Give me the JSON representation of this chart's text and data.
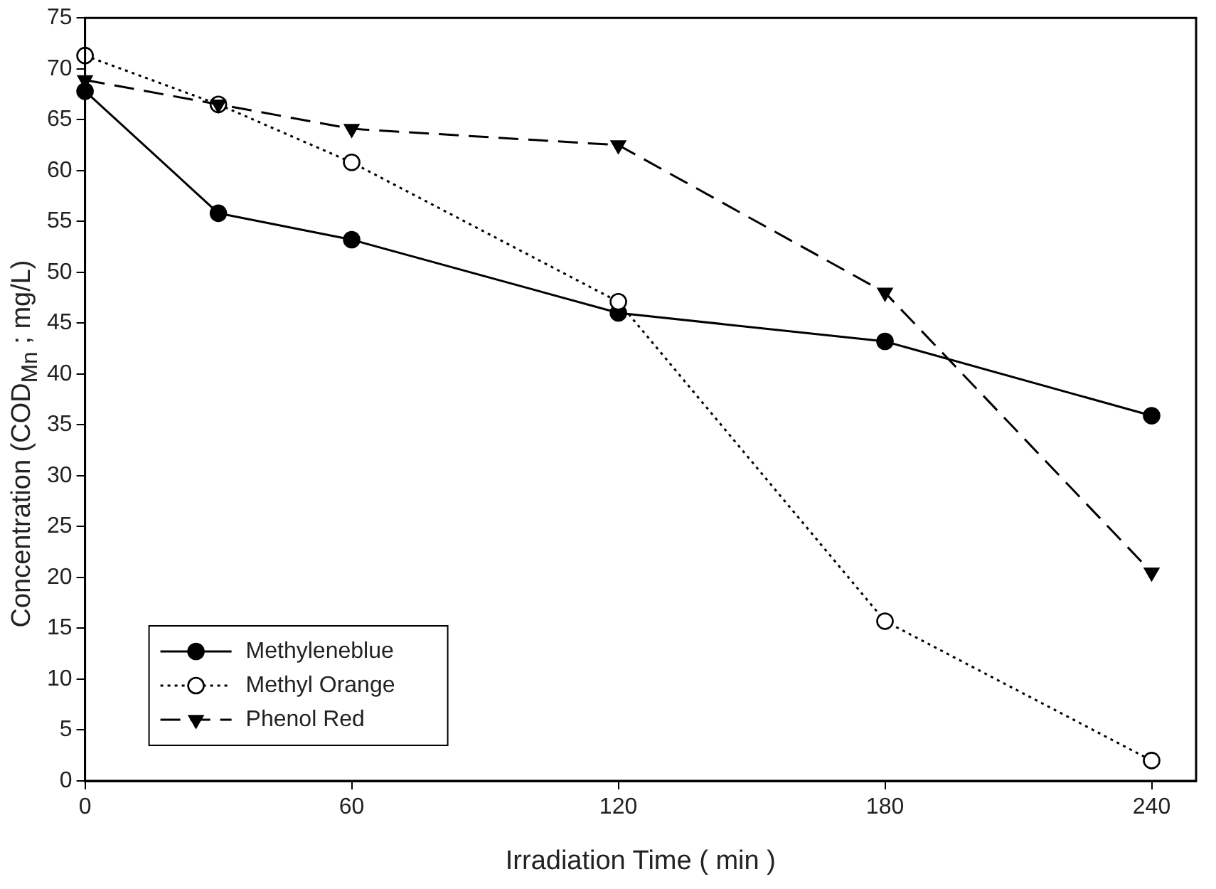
{
  "chart_data": {
    "type": "line",
    "xlabel": "Irradiation Time ( min )",
    "ylabel": "Concentration (COD$_{Mn}$ ; mg/L)",
    "x": [
      0,
      30,
      60,
      120,
      180,
      240
    ],
    "series": [
      {
        "name": "Methyleneblue",
        "color": "#000000",
        "marker": "circle",
        "line_style": "solid",
        "values": [
          67.8,
          55.8,
          53.2,
          46,
          43.2,
          35.9
        ]
      },
      {
        "name": "Methyl Orange",
        "color": "#000000",
        "marker": "circle",
        "line_style": "dotted",
        "values": [
          71.3,
          66.5,
          60.8,
          47.1,
          15.7,
          2
        ]
      },
      {
        "name": "Phenol Red",
        "color": "#000000",
        "marker": "triangle",
        "line_style": "dashed",
        "values": [
          68.9,
          66.5,
          64.1,
          62.5,
          48,
          20.5
        ]
      }
    ],
    "xlim": [
      0,
      250
    ],
    "xticks": [
      0,
      60,
      120,
      180,
      240
    ],
    "ylim": [
      0,
      75
    ],
    "yticks": [
      0,
      5,
      10,
      15,
      20,
      25,
      30,
      35,
      40,
      45,
      50,
      55,
      60,
      65,
      70,
      75
    ],
    "grid": false,
    "legend": "bottom left"
  }
}
